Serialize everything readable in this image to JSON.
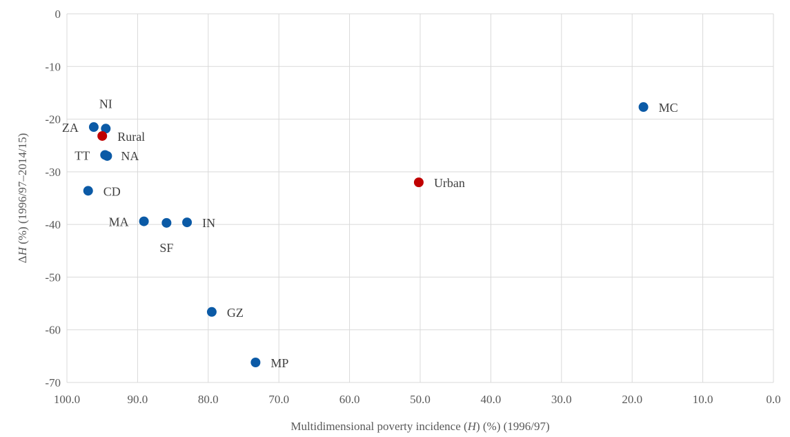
{
  "chart_data": {
    "type": "scatter",
    "title": "",
    "xlabel_parts": [
      "Multidimensional poverty incidence (",
      "H",
      ") (%) (1996/97)"
    ],
    "ylabel_parts": [
      "Δ",
      "H",
      " (%) (1996/97–2014/15)"
    ],
    "xlim": [
      100,
      0
    ],
    "ylim": [
      -70,
      0
    ],
    "x_ticks": [
      "100.0",
      "90.0",
      "80.0",
      "70.0",
      "60.0",
      "50.0",
      "40.0",
      "30.0",
      "20.0",
      "10.0",
      "0.0"
    ],
    "y_ticks": [
      "0",
      "-10",
      "-20",
      "-30",
      "-40",
      "-50",
      "-60",
      "-70"
    ],
    "grid": true,
    "legend": "none",
    "colors": {
      "province": "#0b5aa6",
      "area": "#c00000"
    },
    "series": [
      {
        "group": "province",
        "points": [
          {
            "label": "NI",
            "x": 94.5,
            "y": -21.8
          },
          {
            "label": "ZA",
            "x": 96.2,
            "y": -21.5
          },
          {
            "label": "TT",
            "x": 94.6,
            "y": -26.8
          },
          {
            "label": "NA",
            "x": 94.3,
            "y": -27.0
          },
          {
            "label": "CD",
            "x": 97.0,
            "y": -33.6
          },
          {
            "label": "MA",
            "x": 89.1,
            "y": -39.4
          },
          {
            "label": "SF",
            "x": 85.9,
            "y": -39.7
          },
          {
            "label": "IN",
            "x": 83.0,
            "y": -39.6
          },
          {
            "label": "GZ",
            "x": 79.5,
            "y": -56.6
          },
          {
            "label": "MP",
            "x": 73.3,
            "y": -66.2
          },
          {
            "label": "MC",
            "x": 18.4,
            "y": -17.7
          }
        ]
      },
      {
        "group": "area",
        "points": [
          {
            "label": "Rural",
            "x": 95.0,
            "y": -23.2
          },
          {
            "label": "Urban",
            "x": 50.2,
            "y": -32.0
          }
        ]
      }
    ]
  }
}
